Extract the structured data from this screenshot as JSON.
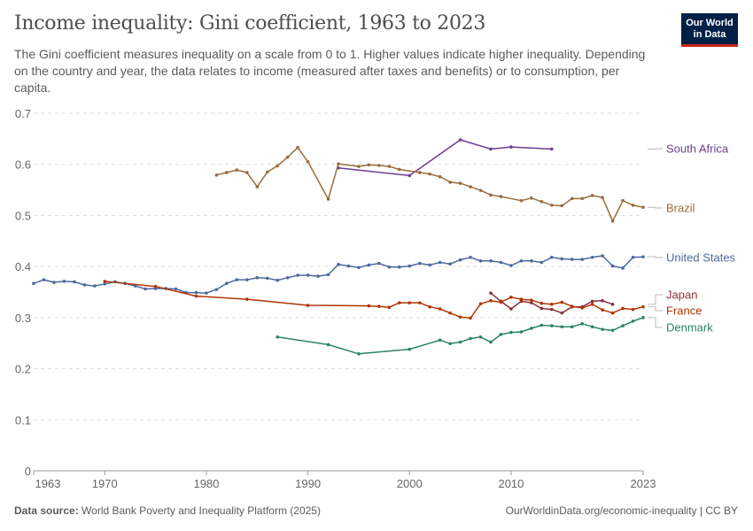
{
  "title": "Income inequality: Gini coefficient, 1963 to 2023",
  "subtitle": "The Gini coefficient measures inequality on a scale from 0 to 1. Higher values indicate higher inequality. Depending on the country and year, the data relates to income (measured after taxes and benefits) or to consumption, per capita.",
  "logo": {
    "line1": "Our World",
    "line2": "in Data",
    "bg": "#002147",
    "accent": "#ce261e"
  },
  "footer": {
    "source_label": "Data source:",
    "source_text": "World Bank Poverty and Inequality Platform (2025)",
    "url": "OurWorldinData.org/economic-inequality | CC BY"
  },
  "chart_data": {
    "type": "line",
    "title": "Income inequality: Gini coefficient, 1963 to 2023",
    "xlim": [
      1963,
      2023
    ],
    "ylim": [
      0,
      0.7
    ],
    "x_ticks": [
      "1963",
      "1970",
      "1980",
      "1990",
      "2000",
      "2010",
      "2023"
    ],
    "x_tick_values": [
      1963,
      1970,
      1980,
      1990,
      2000,
      2010,
      2023
    ],
    "y_ticks": [
      "0",
      "0.1",
      "0.2",
      "0.3",
      "0.4",
      "0.5",
      "0.6",
      "0.7"
    ],
    "y_tick_values": [
      0,
      0.1,
      0.2,
      0.3,
      0.4,
      0.5,
      0.6,
      0.7
    ],
    "grid": "horizontal dashed",
    "legend": "right, labels at line ends",
    "series": [
      {
        "name": "South Africa",
        "color": "#6d3e91",
        "x": [
          1993,
          2000,
          2005,
          2008,
          2010,
          2014
        ],
        "y": [
          0.593,
          0.578,
          0.648,
          0.63,
          0.634,
          0.63
        ]
      },
      {
        "name": "Brazil",
        "color": "#996d39",
        "x": [
          1981,
          1982,
          1983,
          1984,
          1985,
          1986,
          1987,
          1988,
          1989,
          1990,
          1992,
          1993,
          1995,
          1996,
          1997,
          1998,
          1999,
          2001,
          2002,
          2003,
          2004,
          2005,
          2006,
          2007,
          2008,
          2009,
          2011,
          2012,
          2013,
          2014,
          2015,
          2016,
          2017,
          2018,
          2019,
          2020,
          2021,
          2022,
          2023
        ],
        "y": [
          0.579,
          0.584,
          0.589,
          0.584,
          0.556,
          0.585,
          0.597,
          0.614,
          0.633,
          0.605,
          0.532,
          0.601,
          0.596,
          0.599,
          0.598,
          0.596,
          0.59,
          0.584,
          0.581,
          0.576,
          0.565,
          0.563,
          0.556,
          0.549,
          0.54,
          0.537,
          0.529,
          0.534,
          0.527,
          0.52,
          0.519,
          0.533,
          0.533,
          0.539,
          0.535,
          0.489,
          0.529,
          0.52,
          0.516
        ]
      },
      {
        "name": "United States",
        "color": "#4c6a9c",
        "x": [
          1963,
          1964,
          1965,
          1966,
          1967,
          1968,
          1969,
          1970,
          1971,
          1972,
          1973,
          1974,
          1975,
          1976,
          1977,
          1978,
          1979,
          1980,
          1981,
          1982,
          1983,
          1984,
          1985,
          1986,
          1987,
          1988,
          1989,
          1990,
          1991,
          1992,
          1993,
          1994,
          1995,
          1996,
          1997,
          1998,
          1999,
          2000,
          2001,
          2002,
          2003,
          2004,
          2005,
          2006,
          2007,
          2008,
          2009,
          2010,
          2011,
          2012,
          2013,
          2014,
          2015,
          2016,
          2017,
          2018,
          2019,
          2020,
          2021,
          2022,
          2023
        ],
        "y": [
          0.367,
          0.374,
          0.369,
          0.371,
          0.37,
          0.364,
          0.362,
          0.366,
          0.37,
          0.367,
          0.362,
          0.356,
          0.357,
          0.357,
          0.356,
          0.349,
          0.349,
          0.348,
          0.355,
          0.367,
          0.374,
          0.374,
          0.378,
          0.377,
          0.373,
          0.378,
          0.383,
          0.383,
          0.381,
          0.384,
          0.404,
          0.401,
          0.398,
          0.403,
          0.406,
          0.399,
          0.399,
          0.401,
          0.406,
          0.403,
          0.408,
          0.405,
          0.413,
          0.418,
          0.411,
          0.411,
          0.408,
          0.402,
          0.411,
          0.411,
          0.408,
          0.418,
          0.415,
          0.414,
          0.414,
          0.418,
          0.421,
          0.401,
          0.397,
          0.418,
          0.419
        ]
      },
      {
        "name": "Japan",
        "color": "#883039",
        "x": [
          2008,
          2009,
          2010,
          2011,
          2012,
          2013,
          2014,
          2015,
          2016,
          2017,
          2018,
          2019,
          2020
        ],
        "y": [
          0.348,
          0.332,
          0.317,
          0.332,
          0.329,
          0.318,
          0.316,
          0.309,
          0.321,
          0.321,
          0.332,
          0.333,
          0.326
        ]
      },
      {
        "name": "France",
        "color": "#b13507",
        "x": [
          1970,
          1975,
          1979,
          1984,
          1990,
          1996,
          1997,
          1998,
          1999,
          2000,
          2001,
          2002,
          2003,
          2004,
          2005,
          2006,
          2007,
          2008,
          2009,
          2010,
          2011,
          2012,
          2013,
          2014,
          2015,
          2016,
          2017,
          2018,
          2019,
          2020,
          2021,
          2022,
          2023
        ],
        "y": [
          0.371,
          0.361,
          0.342,
          0.336,
          0.324,
          0.323,
          0.322,
          0.32,
          0.329,
          0.329,
          0.329,
          0.321,
          0.317,
          0.309,
          0.301,
          0.299,
          0.327,
          0.333,
          0.33,
          0.34,
          0.336,
          0.334,
          0.328,
          0.326,
          0.33,
          0.322,
          0.319,
          0.326,
          0.315,
          0.309,
          0.318,
          0.316,
          0.321
        ]
      },
      {
        "name": "Denmark",
        "color": "#2c8465",
        "x": [
          1987,
          1992,
          1995,
          2000,
          2003,
          2004,
          2005,
          2006,
          2007,
          2008,
          2009,
          2010,
          2011,
          2012,
          2013,
          2014,
          2015,
          2016,
          2017,
          2018,
          2019,
          2020,
          2021,
          2022,
          2023
        ],
        "y": [
          0.262,
          0.247,
          0.229,
          0.238,
          0.256,
          0.249,
          0.252,
          0.259,
          0.262,
          0.252,
          0.267,
          0.271,
          0.272,
          0.279,
          0.285,
          0.284,
          0.282,
          0.282,
          0.288,
          0.282,
          0.277,
          0.275,
          0.284,
          0.293,
          0.3
        ]
      }
    ]
  }
}
